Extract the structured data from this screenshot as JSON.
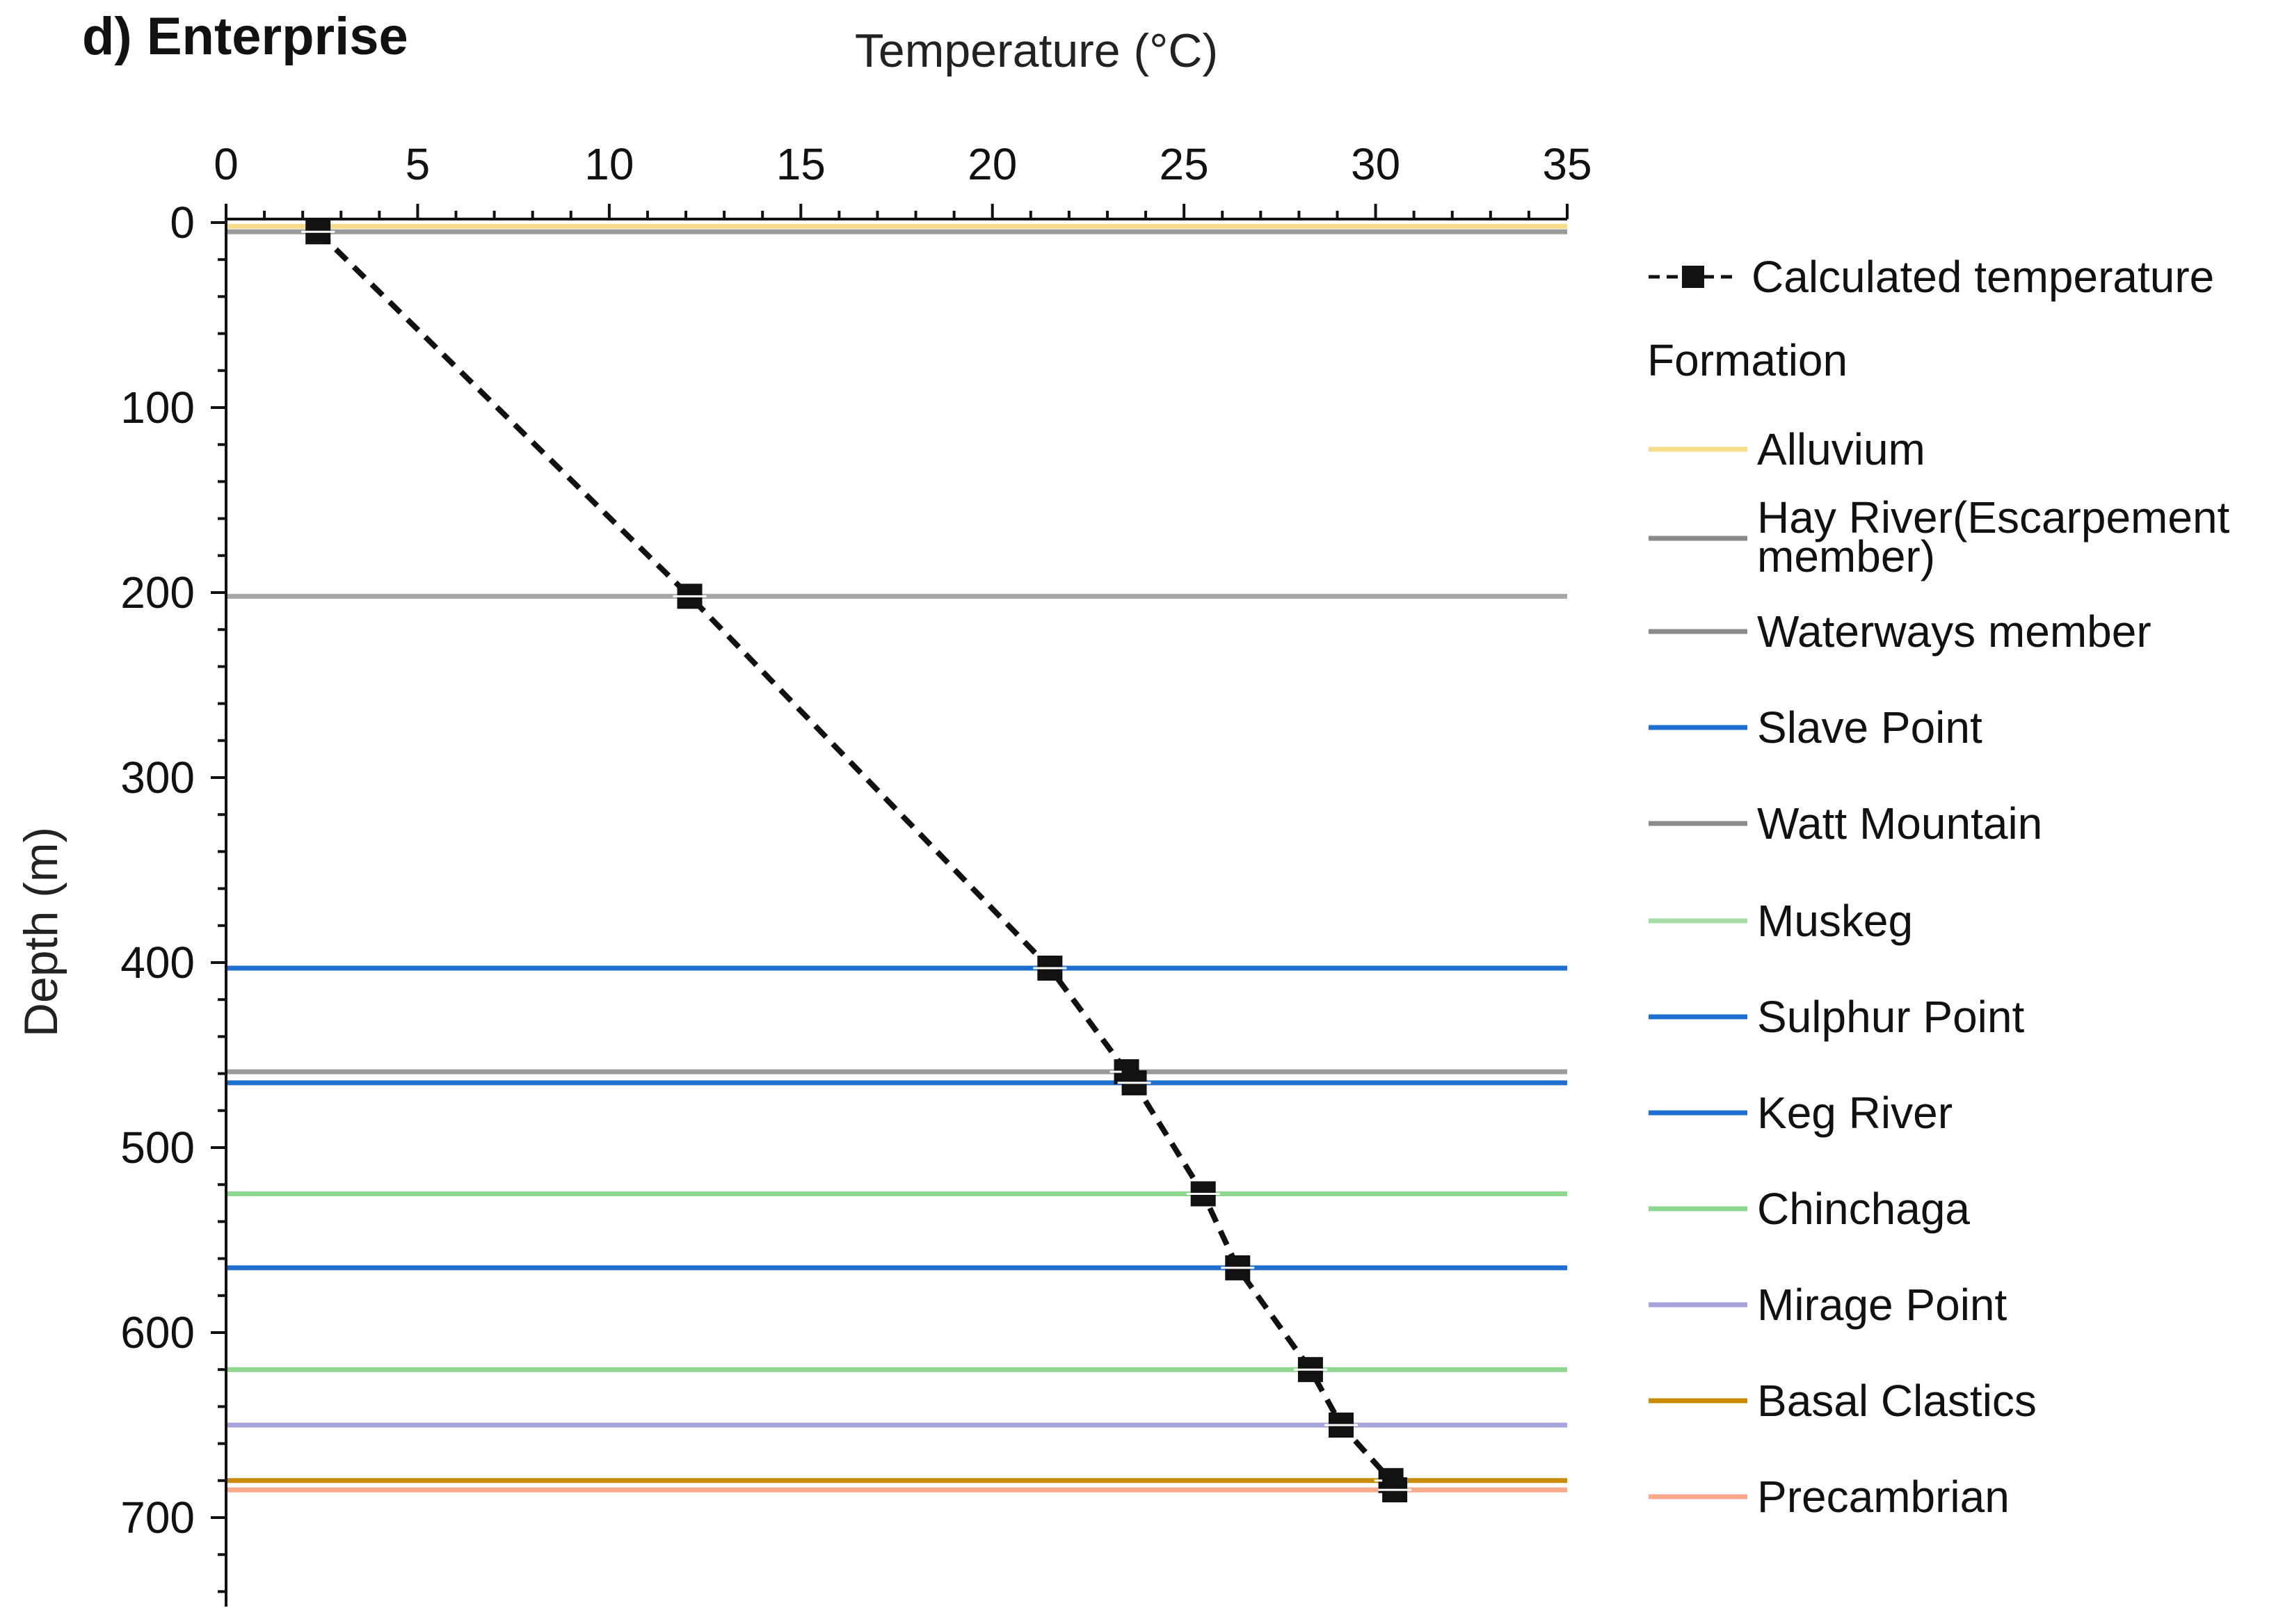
{
  "chart_data": {
    "type": "line",
    "panel_title": "d) Enterprise",
    "xlabel": "Temperature (°C)",
    "ylabel": "Depth (m)",
    "xlim": [
      0,
      35
    ],
    "ylim": [
      0,
      750
    ],
    "y_inverted": true,
    "x_axis_position": "top",
    "x_ticks": [
      0,
      5,
      10,
      15,
      20,
      25,
      30,
      35
    ],
    "y_ticks": [
      0,
      100,
      200,
      300,
      400,
      500,
      600,
      700
    ],
    "grid": false,
    "series": [
      {
        "name": "Calculated temperature",
        "style": "dashed-square-markers",
        "color": "#111111",
        "points": [
          {
            "temp": 2.4,
            "depth": 5
          },
          {
            "temp": 12.1,
            "depth": 202
          },
          {
            "temp": 21.5,
            "depth": 403
          },
          {
            "temp": 23.5,
            "depth": 459
          },
          {
            "temp": 23.7,
            "depth": 465
          },
          {
            "temp": 25.5,
            "depth": 525
          },
          {
            "temp": 26.4,
            "depth": 565
          },
          {
            "temp": 28.3,
            "depth": 620
          },
          {
            "temp": 29.1,
            "depth": 650
          },
          {
            "temp": 30.4,
            "depth": 680
          },
          {
            "temp": 30.5,
            "depth": 685
          }
        ]
      }
    ],
    "formation_tops": [
      {
        "name": "Alluvium",
        "depth": 2,
        "color": "#f7dc8c"
      },
      {
        "name": "Hay River(Escarpement member)",
        "depth": 5,
        "color": "#9a9a9a"
      },
      {
        "name": "Waterways member",
        "depth": 202,
        "color": "#a6a6a6"
      },
      {
        "name": "Slave Point",
        "depth": 403,
        "color": "#1f6fd1"
      },
      {
        "name": "Watt Mountain",
        "depth": 459,
        "color": "#9a9a9a"
      },
      {
        "name": "Sulphur Point",
        "depth": 465,
        "color": "#1f6fd1"
      },
      {
        "name": "Muskeg",
        "depth": 525,
        "color": "#8fd68f"
      },
      {
        "name": "Keg River",
        "depth": 565,
        "color": "#1f6fd1"
      },
      {
        "name": "Chinchaga",
        "depth": 620,
        "color": "#8fd68f"
      },
      {
        "name": "Mirage Point",
        "depth": 650,
        "color": "#a7a3dd"
      },
      {
        "name": "Basal Clastics",
        "depth": 680,
        "color": "#c98c00"
      },
      {
        "name": "Precambrian",
        "depth": 685,
        "color": "#f7a98c"
      }
    ],
    "legend": {
      "placement": "right",
      "series_label": "Calculated temperature",
      "heading": "Formation",
      "entries": [
        {
          "label": "Alluvium",
          "color": "#f7dc8c"
        },
        {
          "label_lines": [
            "Hay River(Escarpement",
            "member)"
          ],
          "color": "#8a8a8a"
        },
        {
          "label": "Waterways member",
          "color": "#8a8a8a"
        },
        {
          "label": "Slave Point",
          "color": "#1f6fd1"
        },
        {
          "label": "Watt Mountain",
          "color": "#8a8a8a"
        },
        {
          "label": "Muskeg",
          "color": "#a8dca8"
        },
        {
          "label": "Sulphur Point",
          "color": "#1f6fd1"
        },
        {
          "label": "Keg River",
          "color": "#1f6fd1"
        },
        {
          "label": "Chinchaga",
          "color": "#8fd68f"
        },
        {
          "label": "Mirage Point",
          "color": "#a7a3dd"
        },
        {
          "label": "Basal Clastics",
          "color": "#c98c00"
        },
        {
          "label": "Precambrian",
          "color": "#f7a98c"
        }
      ]
    }
  }
}
